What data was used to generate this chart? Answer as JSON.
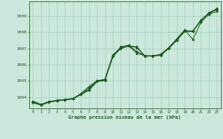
{
  "title": "Graphe pression niveau de la mer (hPa)",
  "bg_color": "#cce8dc",
  "grid_color": "#99ccb3",
  "line_color": "#1a5c1a",
  "marker_color": "#1a5c1a",
  "xlim_min": -0.5,
  "xlim_max": 23.5,
  "ylim_min": 1003.3,
  "ylim_max": 1009.9,
  "yticks": [
    1004,
    1005,
    1006,
    1007,
    1008,
    1009
  ],
  "xticks": [
    0,
    1,
    2,
    3,
    4,
    5,
    6,
    7,
    8,
    9,
    10,
    11,
    12,
    13,
    14,
    15,
    16,
    17,
    18,
    19,
    20,
    21,
    22,
    23
  ],
  "series": [
    [
      1003.75,
      1003.55,
      1003.72,
      1003.8,
      1003.85,
      1003.92,
      1004.2,
      1004.45,
      1005.0,
      1005.05,
      1006.55,
      1007.1,
      1007.2,
      1006.8,
      1006.55,
      1006.55,
      1006.6,
      1007.05,
      1007.55,
      1008.1,
      1008.05,
      1008.75,
      1009.15,
      1009.4
    ],
    [
      1003.7,
      1003.52,
      1003.7,
      1003.78,
      1003.83,
      1003.9,
      1004.15,
      1004.42,
      1004.95,
      1005.02,
      1006.5,
      1007.0,
      1007.15,
      1007.1,
      1006.52,
      1006.53,
      1006.57,
      1007.0,
      1007.5,
      1008.05,
      1008.05,
      1008.7,
      1009.2,
      1009.45
    ],
    [
      1003.65,
      1003.5,
      1003.68,
      1003.76,
      1003.82,
      1003.88,
      1004.22,
      1004.65,
      1005.0,
      1005.1,
      1006.6,
      1007.05,
      1007.15,
      1006.7,
      1006.55,
      1006.53,
      1006.65,
      1007.05,
      1007.6,
      1008.15,
      1007.55,
      1008.6,
      1009.1,
      1009.28
    ],
    [
      1003.72,
      1003.53,
      1003.71,
      1003.79,
      1003.84,
      1003.91,
      1004.18,
      1004.55,
      1004.98,
      1005.07,
      1006.52,
      1007.02,
      1007.18,
      1007.05,
      1006.53,
      1006.54,
      1006.62,
      1007.02,
      1007.52,
      1008.08,
      1008.08,
      1008.72,
      1009.18,
      1009.42
    ]
  ]
}
